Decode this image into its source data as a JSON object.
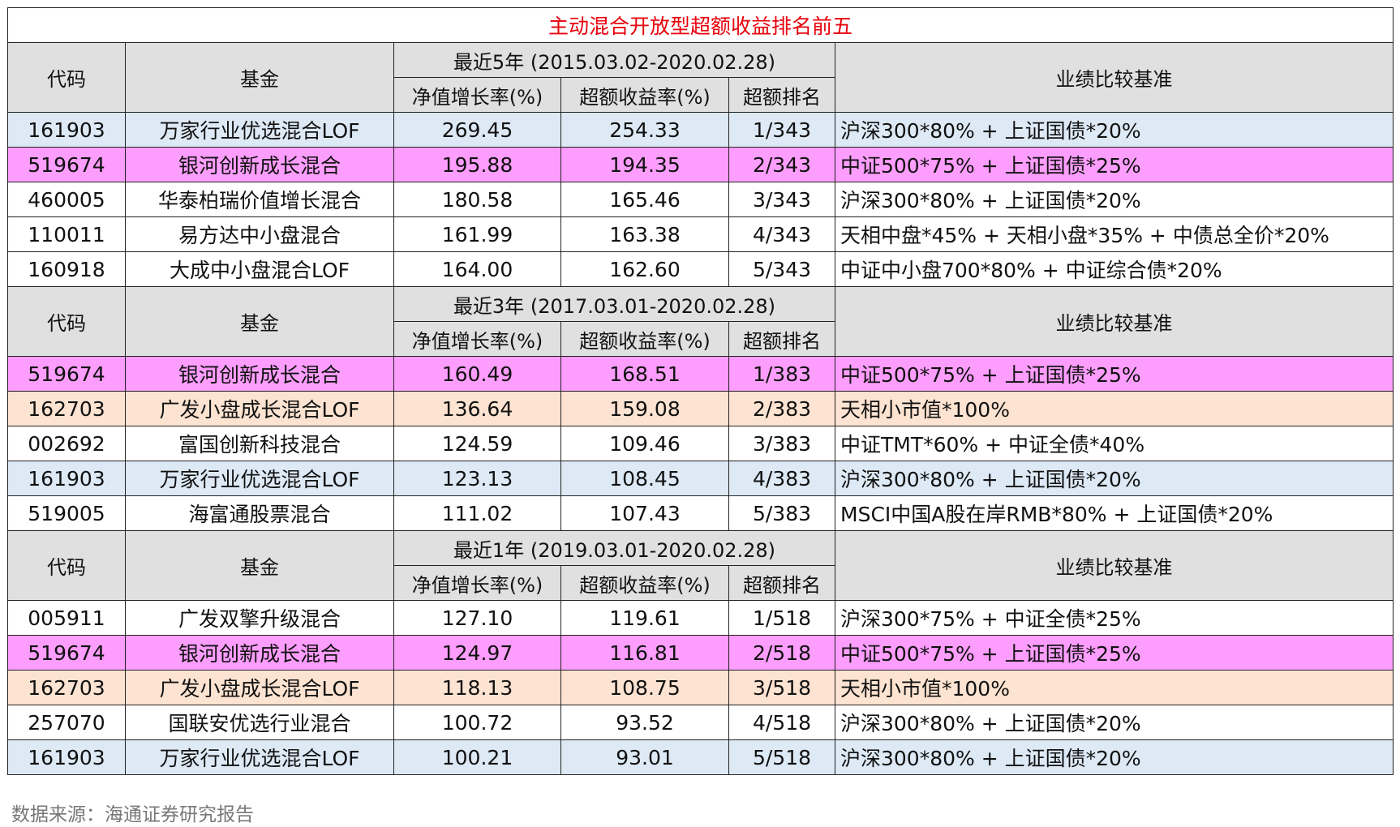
{
  "title": "主动混合开放型超额收益排名前五",
  "sections": [
    {
      "period": "最近5年 (2015.03.02-2020.02.28)",
      "headers": [
        "代码",
        "基金",
        "净值增长率(%)",
        "超额收益率(%)",
        "超额排名",
        "业绩比较基准"
      ],
      "rows": [
        [
          "161903",
          "万家行业优选混合LOF",
          "269.45",
          "254.33",
          "1/343",
          "沪深300*80% + 上证国债*20%"
        ],
        [
          "519674",
          "银河创新成长混合",
          "195.88",
          "194.35",
          "2/343",
          "中证500*75% + 上证国债*25%"
        ],
        [
          "460005",
          "华泰柏瑞价值增长混合",
          "180.58",
          "165.46",
          "3/343",
          "沪深300*80% + 上证国债*20%"
        ],
        [
          "110011",
          "易方达中小盘混合",
          "161.99",
          "163.38",
          "4/343",
          "天相中盘*45% + 天相小盘*35% + 中债总全价*20%"
        ],
        [
          "160918",
          "大成中小盘混合LOF",
          "164.00",
          "162.60",
          "5/343",
          "中证中小盘700*80% + 中证综合债*20%"
        ]
      ],
      "row_colors": [
        "#dde9f5",
        "#fd9dfd",
        null,
        null,
        null
      ]
    },
    {
      "period": "最近3年 (2017.03.01-2020.02.28)",
      "headers": [
        "代码",
        "基金",
        "净值增长率(%)",
        "超额收益率(%)",
        "超额排名",
        "业绩比较基准"
      ],
      "rows": [
        [
          "519674",
          "银河创新成长混合",
          "160.49",
          "168.51",
          "1/383",
          "中证500*75% + 上证国债*25%"
        ],
        [
          "162703",
          "广发小盘成长混合LOF",
          "136.64",
          "159.08",
          "2/383",
          "天相小市值*100%"
        ],
        [
          "002692",
          "富国创新科技混合",
          "124.59",
          "109.46",
          "3/383",
          "中证TMT*60% + 中证全债*40%"
        ],
        [
          "161903",
          "万家行业优选混合LOF",
          "123.13",
          "108.45",
          "4/383",
          "沪深300*80% + 上证国债*20%"
        ],
        [
          "519005",
          "海富通股票混合",
          "111.02",
          "107.43",
          "5/383",
          "MSCI中国A股在岸RMB*80% + 上证国债*20%"
        ]
      ],
      "row_colors": [
        "#fd9dfd",
        "#fde3d1",
        null,
        "#dde9f5",
        null
      ]
    },
    {
      "period": "最近1年 (2019.03.01-2020.02.28)",
      "headers": [
        "代码",
        "基金",
        "净值增长率(%)",
        "超额收益率(%)",
        "超额排名",
        "业绩比较基准"
      ],
      "rows": [
        [
          "005911",
          "广发双擎升级混合",
          "127.10",
          "119.61",
          "1/518",
          "沪深300*75% + 中证全债*25%"
        ],
        [
          "519674",
          "银河创新成长混合",
          "124.97",
          "116.81",
          "2/518",
          "中证500*75% + 上证国债*25%"
        ],
        [
          "162703",
          "广发小盘成长混合LOF",
          "118.13",
          "108.75",
          "3/518",
          "天相小市值*100%"
        ],
        [
          "257070",
          "国联安优选行业混合",
          "100.72",
          "93.52",
          "4/518",
          "沪深300*80% + 上证国债*20%"
        ],
        [
          "161903",
          "万家行业优选混合LOF",
          "100.21",
          "93.01",
          "5/518",
          "沪深300*80% + 上证国债*20%"
        ]
      ],
      "row_colors": [
        null,
        "#fd9dfd",
        "#fde3d1",
        null,
        "#dde9f5"
      ]
    }
  ],
  "source": "数据来源：海通证券研究报告"
}
